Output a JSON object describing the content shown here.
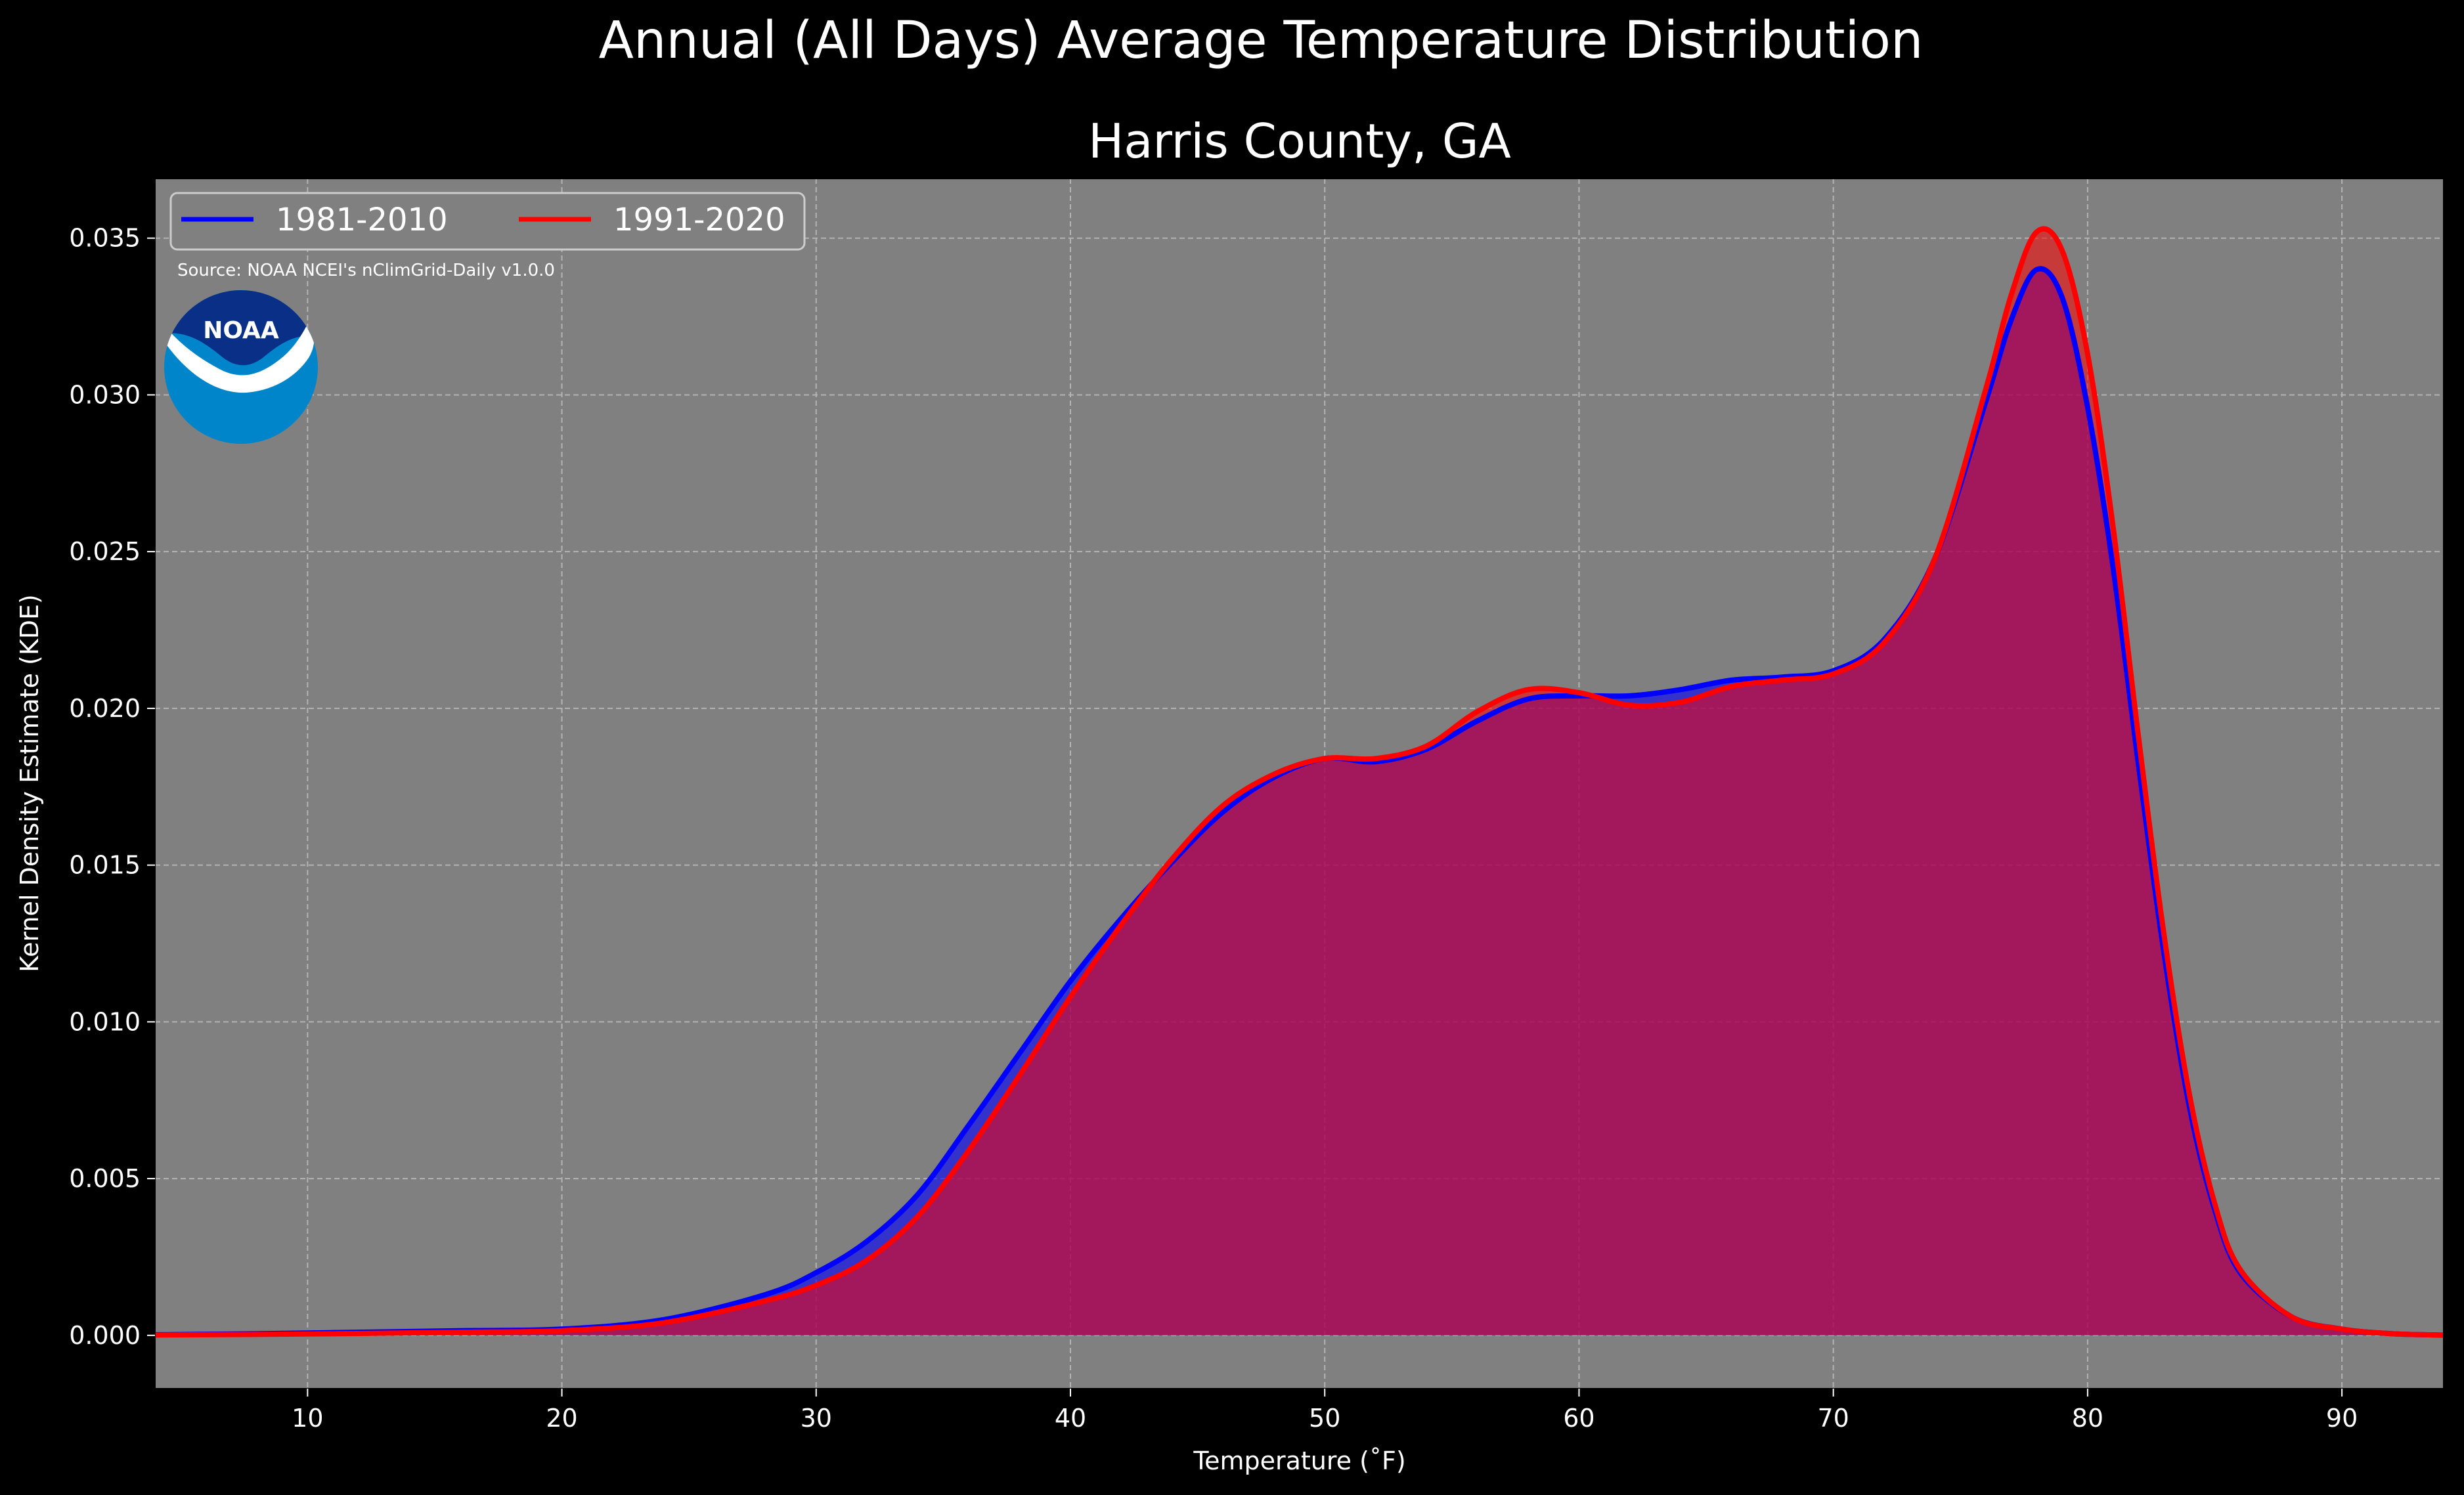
{
  "chart_data": {
    "type": "area",
    "title": "Annual (All Days) Average Temperature Distribution",
    "subtitle": "Harris County, GA",
    "xlabel": "Temperature ($^\\circ$F)",
    "xlabel_display": "Temperature (˚F)",
    "ylabel": "Kernel Density Estimate (KDE)",
    "xlim": [
      4,
      94
    ],
    "ylim": [
      -0.0017,
      0.0369
    ],
    "xticks": [
      10,
      20,
      30,
      40,
      50,
      60,
      70,
      80,
      90
    ],
    "yticks": [
      0.0,
      0.005,
      0.01,
      0.015,
      0.02,
      0.025,
      0.03,
      0.035
    ],
    "ytick_labels": [
      "0.000",
      "0.005",
      "0.010",
      "0.015",
      "0.020",
      "0.025",
      "0.030",
      "0.035"
    ],
    "grid": true,
    "legend": "top-left",
    "annotation": "Source: NOAA NCEI's nClimGrid-Daily v1.0.0",
    "logo_text": "NOAA",
    "colors": {
      "background": "#000000",
      "axes_bg": "#808080",
      "series1": "#0000ff",
      "series2": "#ff0000",
      "fill_overlap": "#9e1f5e"
    },
    "series": [
      {
        "name": "1981-2010",
        "color": "#0000ff",
        "x": [
          4,
          8,
          12,
          16,
          20,
          24,
          28,
          30,
          32,
          34,
          36,
          38,
          40,
          42,
          44,
          46,
          48,
          50,
          52,
          54,
          56,
          58,
          60,
          62,
          64,
          66,
          68,
          70,
          72,
          74,
          76,
          77,
          78,
          79,
          80,
          81,
          82,
          83,
          84,
          85,
          86,
          88,
          90,
          92,
          94
        ],
        "y": [
          2e-05,
          5e-05,
          0.0001,
          0.00015,
          0.0002,
          0.0005,
          0.0013,
          0.002,
          0.003,
          0.0045,
          0.0067,
          0.009,
          0.0113,
          0.0133,
          0.0151,
          0.0167,
          0.0178,
          0.0184,
          0.0183,
          0.0187,
          0.0196,
          0.0203,
          0.0204,
          0.0204,
          0.0206,
          0.0209,
          0.021,
          0.0212,
          0.0222,
          0.0248,
          0.0298,
          0.0324,
          0.034,
          0.0331,
          0.0296,
          0.0245,
          0.0182,
          0.0122,
          0.0073,
          0.004,
          0.002,
          0.0006,
          0.0002,
          5e-05,
          1e-05
        ]
      },
      {
        "name": "1991-2020",
        "color": "#ff0000",
        "x": [
          4,
          8,
          12,
          16,
          20,
          24,
          28,
          30,
          32,
          34,
          36,
          38,
          40,
          42,
          44,
          46,
          48,
          50,
          52,
          54,
          56,
          58,
          60,
          62,
          64,
          66,
          68,
          70,
          72,
          74,
          76,
          77,
          78,
          79,
          80,
          81,
          82,
          83,
          84,
          85,
          86,
          88,
          90,
          92,
          94
        ],
        "y": [
          1e-05,
          3e-05,
          6e-05,
          0.0001,
          0.00015,
          0.0004,
          0.0011,
          0.0016,
          0.0024,
          0.0038,
          0.0059,
          0.0083,
          0.0108,
          0.0131,
          0.0152,
          0.0169,
          0.0179,
          0.0184,
          0.0184,
          0.0188,
          0.0199,
          0.0206,
          0.0205,
          0.0201,
          0.0202,
          0.0207,
          0.0209,
          0.0211,
          0.0221,
          0.0248,
          0.0302,
          0.0332,
          0.0352,
          0.0346,
          0.0313,
          0.0258,
          0.0191,
          0.0128,
          0.0077,
          0.0042,
          0.0021,
          0.0006,
          0.0002,
          5e-05,
          1e-05
        ]
      }
    ]
  }
}
